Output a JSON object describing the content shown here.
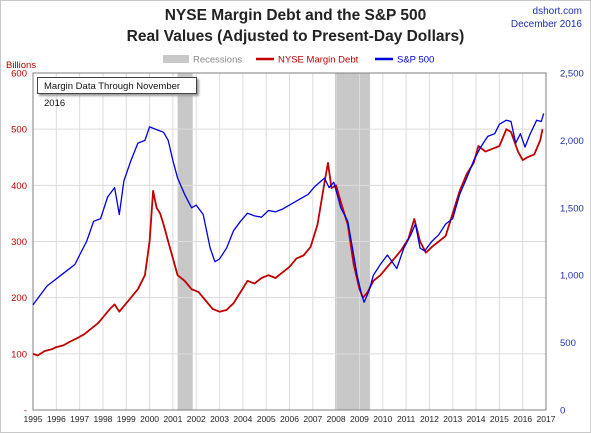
{
  "header": {
    "title_line1": "NYSE Margin Debt and the S&P 500",
    "title_line2": "Real Values (Adjusted to Present-Day Dollars)",
    "source": "dshort.com",
    "date": "December 2016"
  },
  "note": "Margin Data Through November 2016",
  "chart_data": {
    "type": "line",
    "left_axis_label": "Billions",
    "y_left": {
      "min": 0,
      "max": 600,
      "ticks": [
        0,
        100,
        200,
        300,
        400,
        500,
        600
      ],
      "tick_labels": [
        "-",
        "100",
        "200",
        "300",
        "400",
        "500",
        "600"
      ]
    },
    "y_right": {
      "min": 0,
      "max": 2500,
      "ticks": [
        0,
        500,
        1000,
        1500,
        2000,
        2500
      ],
      "tick_labels": [
        "0",
        "500",
        "1,000",
        "1,500",
        "2,000",
        "2,500"
      ]
    },
    "x": {
      "min": 1995,
      "max": 2017,
      "ticks": [
        1995,
        1996,
        1997,
        1998,
        1999,
        2000,
        2001,
        2002,
        2003,
        2004,
        2005,
        2006,
        2007,
        2008,
        2009,
        2010,
        2011,
        2012,
        2013,
        2014,
        2015,
        2016,
        2017
      ],
      "tick_labels": [
        "1995",
        "1996",
        "1997",
        "1998",
        "1999",
        "2000",
        "2001",
        "2002",
        "2003",
        "2004",
        "2005",
        "2006",
        "2007",
        "2008",
        "2009",
        "2010",
        "2011",
        "2012",
        "2013",
        "2014",
        "2015",
        "2016",
        "2017"
      ]
    },
    "grid": true,
    "legend": {
      "placement": "top-center",
      "items": [
        {
          "label": "Recessions",
          "kind": "band",
          "color": "#c8c8c8"
        },
        {
          "label": "NYSE Margin Debt",
          "kind": "line",
          "color": "#c00000"
        },
        {
          "label": "S&P 500",
          "kind": "line",
          "color": "#0000e0"
        }
      ]
    },
    "recessions": [
      {
        "start": 2001.2,
        "end": 2001.85
      },
      {
        "start": 2007.95,
        "end": 2009.45
      }
    ],
    "series": [
      {
        "name": "NYSE Margin Debt",
        "axis": "left",
        "color": "#c00000",
        "points": [
          [
            1995.0,
            100
          ],
          [
            1995.2,
            97
          ],
          [
            1995.5,
            105
          ],
          [
            1995.8,
            108
          ],
          [
            1996.0,
            112
          ],
          [
            1996.3,
            115
          ],
          [
            1996.6,
            122
          ],
          [
            1996.9,
            128
          ],
          [
            1997.2,
            135
          ],
          [
            1997.5,
            145
          ],
          [
            1997.8,
            155
          ],
          [
            1998.0,
            165
          ],
          [
            1998.3,
            180
          ],
          [
            1998.5,
            188
          ],
          [
            1998.7,
            175
          ],
          [
            1998.9,
            185
          ],
          [
            1999.2,
            200
          ],
          [
            1999.5,
            215
          ],
          [
            1999.8,
            240
          ],
          [
            2000.0,
            300
          ],
          [
            2000.15,
            390
          ],
          [
            2000.3,
            360
          ],
          [
            2000.45,
            350
          ],
          [
            2000.6,
            330
          ],
          [
            2000.8,
            300
          ],
          [
            2001.0,
            270
          ],
          [
            2001.2,
            240
          ],
          [
            2001.5,
            230
          ],
          [
            2001.8,
            215
          ],
          [
            2002.1,
            210
          ],
          [
            2002.4,
            195
          ],
          [
            2002.7,
            180
          ],
          [
            2003.0,
            175
          ],
          [
            2003.3,
            178
          ],
          [
            2003.6,
            190
          ],
          [
            2003.9,
            210
          ],
          [
            2004.2,
            230
          ],
          [
            2004.5,
            225
          ],
          [
            2004.8,
            235
          ],
          [
            2005.1,
            240
          ],
          [
            2005.4,
            235
          ],
          [
            2005.7,
            245
          ],
          [
            2006.0,
            255
          ],
          [
            2006.3,
            270
          ],
          [
            2006.6,
            275
          ],
          [
            2006.9,
            290
          ],
          [
            2007.2,
            330
          ],
          [
            2007.5,
            405
          ],
          [
            2007.65,
            440
          ],
          [
            2007.8,
            395
          ],
          [
            2008.0,
            400
          ],
          [
            2008.2,
            370
          ],
          [
            2008.5,
            330
          ],
          [
            2008.75,
            260
          ],
          [
            2009.0,
            215
          ],
          [
            2009.15,
            200
          ],
          [
            2009.35,
            210
          ],
          [
            2009.6,
            230
          ],
          [
            2009.9,
            240
          ],
          [
            2010.2,
            255
          ],
          [
            2010.5,
            270
          ],
          [
            2010.8,
            285
          ],
          [
            2011.1,
            305
          ],
          [
            2011.35,
            340
          ],
          [
            2011.6,
            300
          ],
          [
            2011.85,
            280
          ],
          [
            2012.1,
            290
          ],
          [
            2012.4,
            300
          ],
          [
            2012.7,
            310
          ],
          [
            2013.0,
            350
          ],
          [
            2013.3,
            390
          ],
          [
            2013.6,
            420
          ],
          [
            2013.9,
            440
          ],
          [
            2014.1,
            470
          ],
          [
            2014.4,
            460
          ],
          [
            2014.7,
            465
          ],
          [
            2015.0,
            470
          ],
          [
            2015.3,
            500
          ],
          [
            2015.5,
            495
          ],
          [
            2015.8,
            460
          ],
          [
            2016.0,
            445
          ],
          [
            2016.2,
            450
          ],
          [
            2016.5,
            455
          ],
          [
            2016.75,
            480
          ],
          [
            2016.85,
            500
          ]
        ]
      },
      {
        "name": "S&P 500",
        "axis": "right",
        "color": "#0000e0",
        "points": [
          [
            1995.0,
            780
          ],
          [
            1995.3,
            850
          ],
          [
            1995.6,
            920
          ],
          [
            1995.9,
            960
          ],
          [
            1996.2,
            1000
          ],
          [
            1996.5,
            1040
          ],
          [
            1996.8,
            1080
          ],
          [
            1997.0,
            1150
          ],
          [
            1997.3,
            1250
          ],
          [
            1997.6,
            1400
          ],
          [
            1997.9,
            1420
          ],
          [
            1998.2,
            1580
          ],
          [
            1998.5,
            1650
          ],
          [
            1998.7,
            1450
          ],
          [
            1998.9,
            1700
          ],
          [
            1999.2,
            1850
          ],
          [
            1999.5,
            1980
          ],
          [
            1999.8,
            2000
          ],
          [
            2000.0,
            2100
          ],
          [
            2000.3,
            2080
          ],
          [
            2000.6,
            2060
          ],
          [
            2000.8,
            2000
          ],
          [
            2001.0,
            1850
          ],
          [
            2001.2,
            1720
          ],
          [
            2001.5,
            1600
          ],
          [
            2001.8,
            1500
          ],
          [
            2002.0,
            1520
          ],
          [
            2002.3,
            1450
          ],
          [
            2002.6,
            1200
          ],
          [
            2002.8,
            1100
          ],
          [
            2003.0,
            1120
          ],
          [
            2003.3,
            1200
          ],
          [
            2003.6,
            1330
          ],
          [
            2003.9,
            1400
          ],
          [
            2004.2,
            1460
          ],
          [
            2004.5,
            1440
          ],
          [
            2004.8,
            1430
          ],
          [
            2005.1,
            1480
          ],
          [
            2005.4,
            1470
          ],
          [
            2005.7,
            1490
          ],
          [
            2006.0,
            1520
          ],
          [
            2006.4,
            1560
          ],
          [
            2006.8,
            1600
          ],
          [
            2007.1,
            1660
          ],
          [
            2007.5,
            1720
          ],
          [
            2007.7,
            1650
          ],
          [
            2007.9,
            1690
          ],
          [
            2008.2,
            1500
          ],
          [
            2008.5,
            1400
          ],
          [
            2008.7,
            1200
          ],
          [
            2008.9,
            1000
          ],
          [
            2009.1,
            850
          ],
          [
            2009.2,
            800
          ],
          [
            2009.4,
            880
          ],
          [
            2009.6,
            1000
          ],
          [
            2009.9,
            1080
          ],
          [
            2010.2,
            1150
          ],
          [
            2010.4,
            1100
          ],
          [
            2010.6,
            1050
          ],
          [
            2010.9,
            1200
          ],
          [
            2011.2,
            1300
          ],
          [
            2011.4,
            1380
          ],
          [
            2011.6,
            1200
          ],
          [
            2011.8,
            1180
          ],
          [
            2012.1,
            1250
          ],
          [
            2012.4,
            1300
          ],
          [
            2012.7,
            1380
          ],
          [
            2013.0,
            1420
          ],
          [
            2013.3,
            1600
          ],
          [
            2013.6,
            1720
          ],
          [
            2013.9,
            1850
          ],
          [
            2014.2,
            1950
          ],
          [
            2014.5,
            2030
          ],
          [
            2014.8,
            2050
          ],
          [
            2015.0,
            2120
          ],
          [
            2015.3,
            2150
          ],
          [
            2015.5,
            2140
          ],
          [
            2015.7,
            1980
          ],
          [
            2015.9,
            2050
          ],
          [
            2016.1,
            1950
          ],
          [
            2016.3,
            2040
          ],
          [
            2016.6,
            2150
          ],
          [
            2016.8,
            2140
          ],
          [
            2016.9,
            2200
          ]
        ]
      }
    ]
  }
}
